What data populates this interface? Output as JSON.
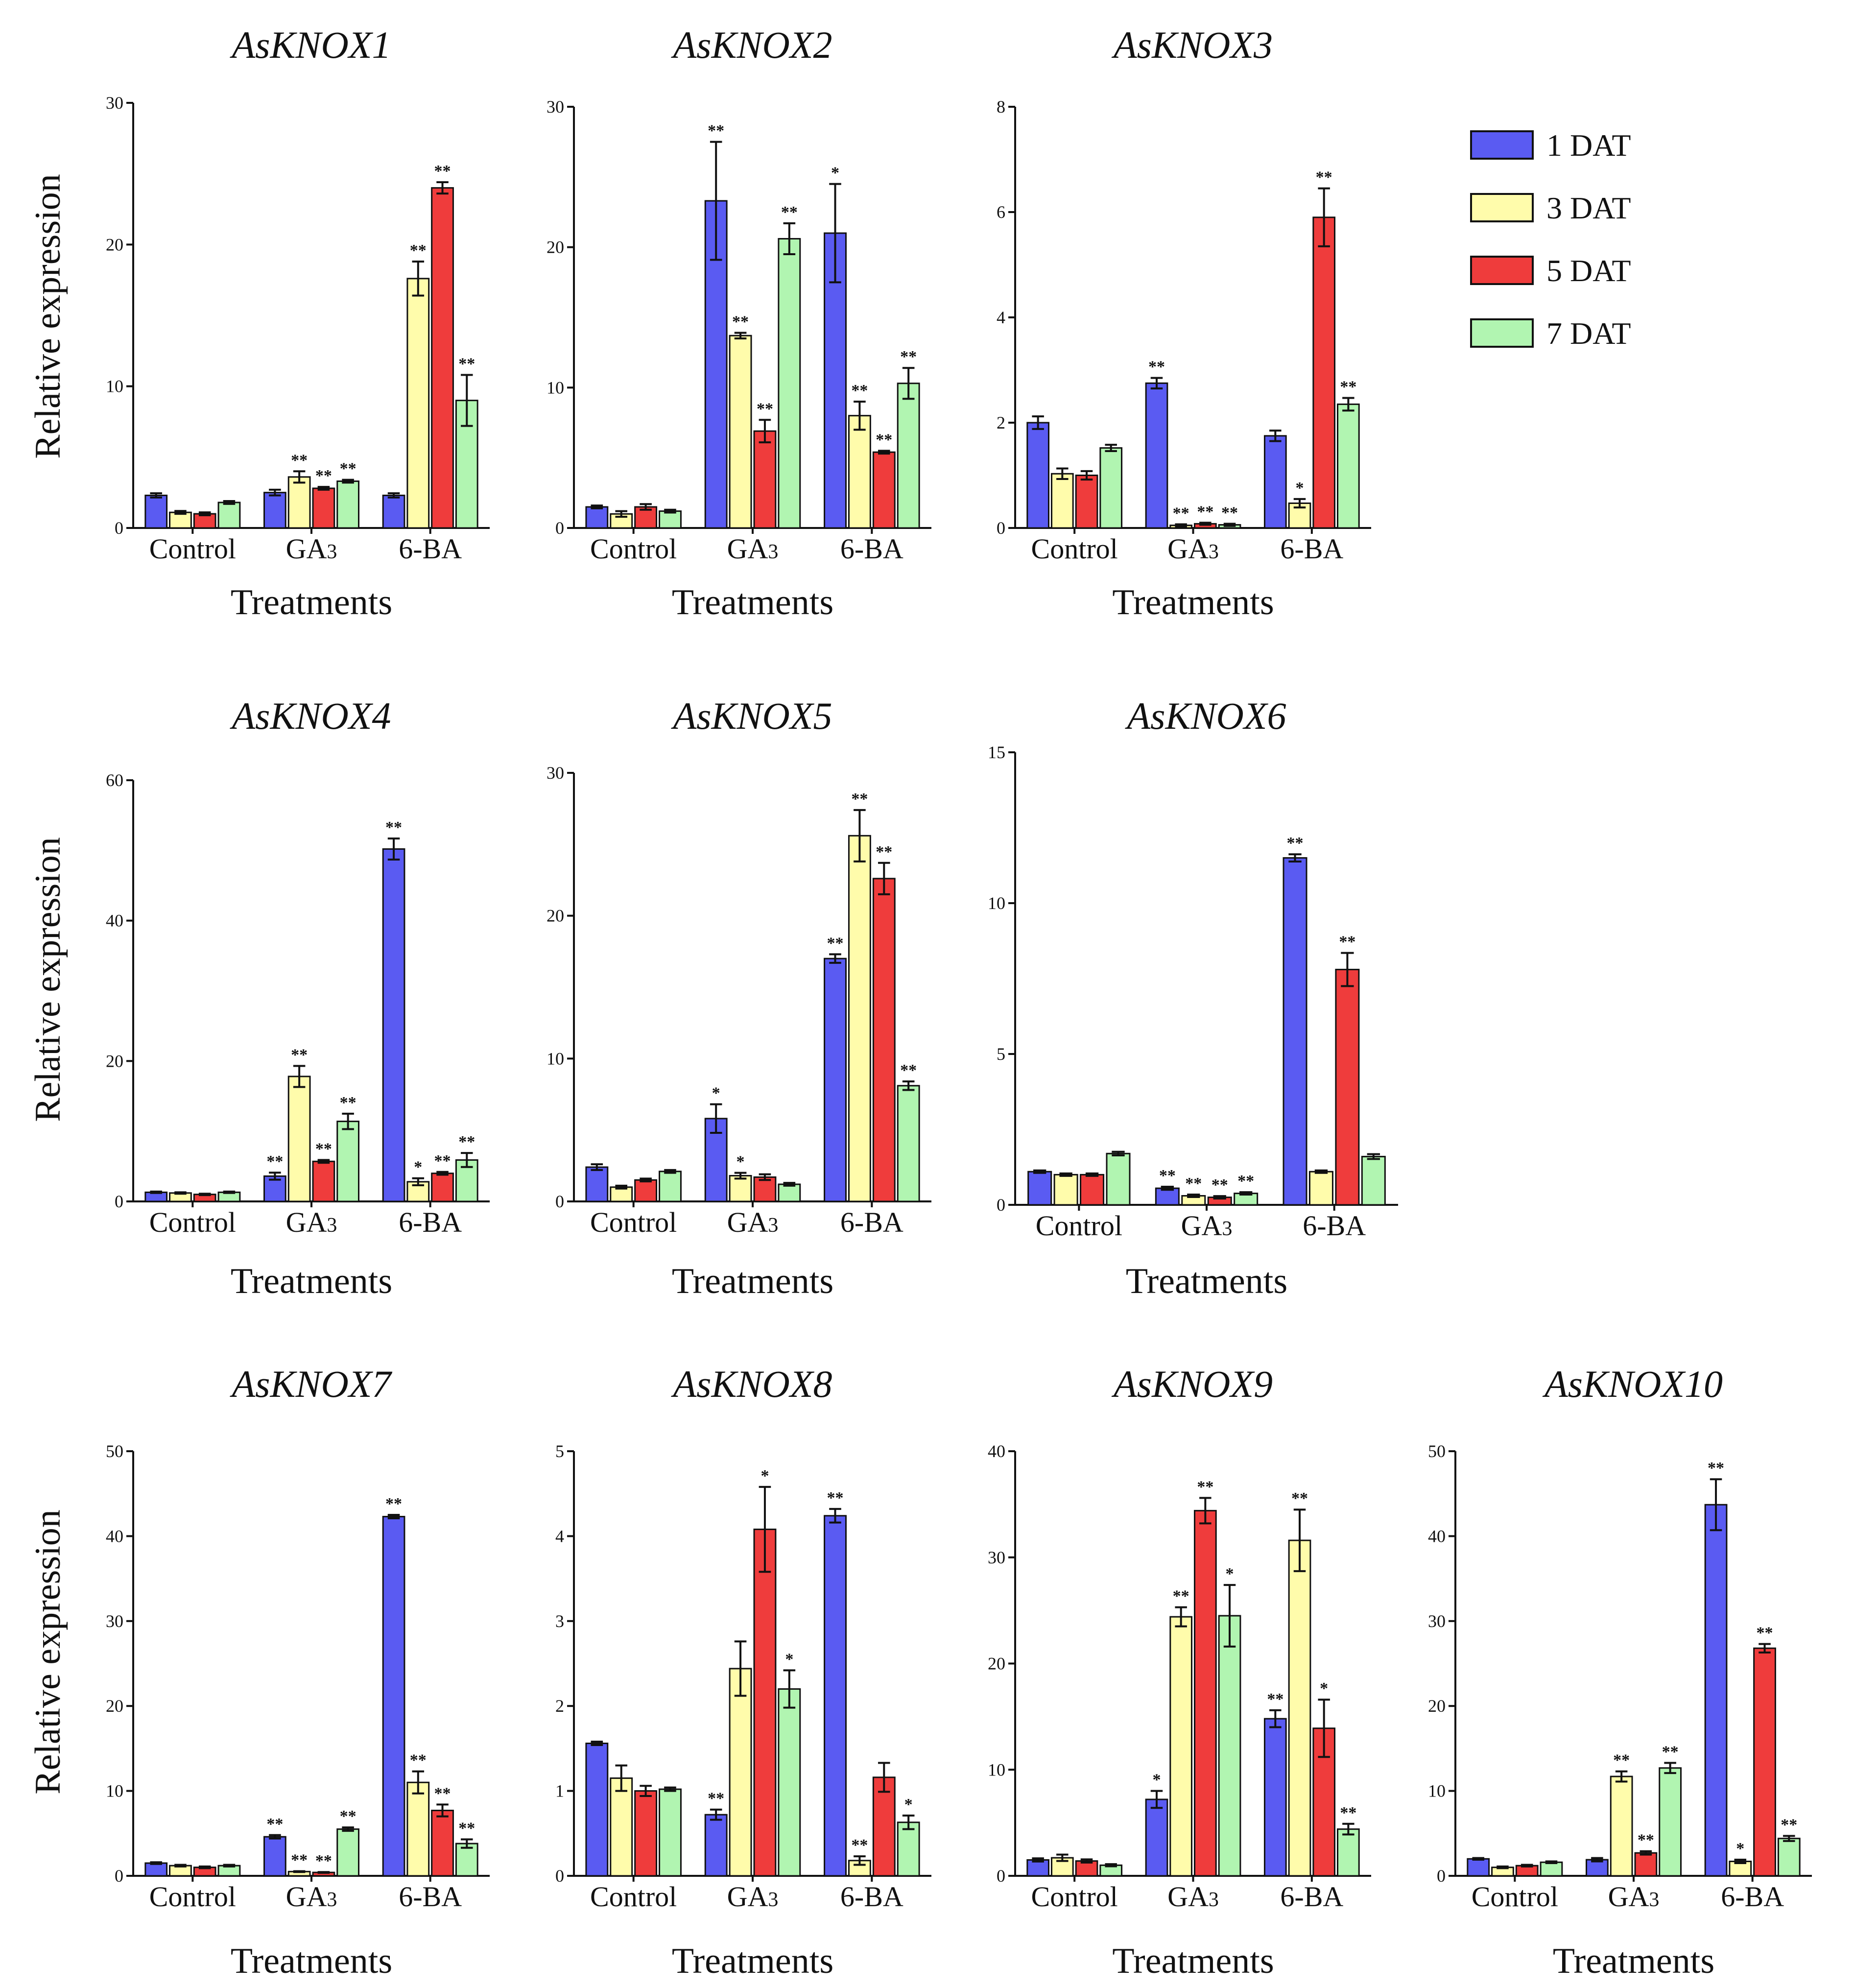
{
  "figure": {
    "ylabel": "Relative  expression",
    "xlabel": "Treatments",
    "categories": [
      "Control",
      "GA3",
      "6-BA"
    ],
    "series_names": [
      "1  DAT",
      "3  DAT",
      "5  DAT",
      "7  DAT"
    ],
    "colors": [
      "#5a5bf2",
      "#fffcab",
      "#ef3c3c",
      "#b1f5b1"
    ]
  },
  "legend": {
    "items": [
      {
        "label": "1  DAT",
        "color": "#5a5bf2"
      },
      {
        "label": "3  DAT",
        "color": "#fffcab"
      },
      {
        "label": "5  DAT",
        "color": "#ef3c3c"
      },
      {
        "label": "7  DAT",
        "color": "#b1f5b1"
      }
    ]
  },
  "chart_data": [
    {
      "type": "bar",
      "title": "AsKNOX1",
      "xlabel": "Treatments",
      "ylabel": "Relative  expression",
      "categories": [
        "Control",
        "GA3",
        "6-BA"
      ],
      "ylim": [
        0,
        30
      ],
      "yticks": [
        0,
        10,
        20,
        30
      ],
      "series": [
        {
          "name": "1  DAT",
          "values": [
            2.3,
            2.5,
            2.3
          ],
          "errors": [
            0.15,
            0.2,
            0.15
          ],
          "sig": [
            "",
            "",
            ""
          ]
        },
        {
          "name": "3  DAT",
          "values": [
            1.1,
            3.6,
            17.6
          ],
          "errors": [
            0.1,
            0.4,
            1.2
          ],
          "sig": [
            "",
            "**",
            "**"
          ]
        },
        {
          "name": "5  DAT",
          "values": [
            1.0,
            2.8,
            24.0
          ],
          "errors": [
            0.1,
            0.1,
            0.4
          ],
          "sig": [
            "",
            "**",
            "**"
          ]
        },
        {
          "name": "7  DAT",
          "values": [
            1.8,
            3.3,
            9.0
          ],
          "errors": [
            0.1,
            0.1,
            1.8
          ],
          "sig": [
            "",
            "**",
            "**"
          ]
        }
      ]
    },
    {
      "type": "bar",
      "title": "AsKNOX2",
      "xlabel": "Treatments",
      "ylabel": "Relative  expression",
      "categories": [
        "Control",
        "GA3",
        "6-BA"
      ],
      "ylim": [
        0,
        30
      ],
      "yticks": [
        0,
        10,
        20,
        30
      ],
      "series": [
        {
          "name": "1  DAT",
          "values": [
            1.5,
            23.3,
            21.0
          ],
          "errors": [
            0.1,
            4.2,
            3.5
          ],
          "sig": [
            "",
            "**",
            "*"
          ]
        },
        {
          "name": "3  DAT",
          "values": [
            1.0,
            13.7,
            8.0
          ],
          "errors": [
            0.2,
            0.2,
            1.0
          ],
          "sig": [
            "",
            "**",
            "**"
          ]
        },
        {
          "name": "5  DAT",
          "values": [
            1.5,
            6.9,
            5.4
          ],
          "errors": [
            0.2,
            0.8,
            0.1
          ],
          "sig": [
            "",
            "**",
            "**"
          ]
        },
        {
          "name": "7  DAT",
          "values": [
            1.2,
            20.6,
            10.3
          ],
          "errors": [
            0.1,
            1.1,
            1.1
          ],
          "sig": [
            "",
            "**",
            "**"
          ]
        }
      ]
    },
    {
      "type": "bar",
      "title": "AsKNOX3",
      "xlabel": "Treatments",
      "ylabel": "Relative  expression",
      "categories": [
        "Control",
        "GA3",
        "6-BA"
      ],
      "ylim": [
        0,
        8
      ],
      "yticks": [
        0,
        2,
        4,
        6,
        8
      ],
      "series": [
        {
          "name": "1  DAT",
          "values": [
            2.0,
            2.75,
            1.75
          ],
          "errors": [
            0.12,
            0.1,
            0.1
          ],
          "sig": [
            "",
            "**",
            ""
          ]
        },
        {
          "name": "3  DAT",
          "values": [
            1.03,
            0.05,
            0.47
          ],
          "errors": [
            0.1,
            0.02,
            0.08
          ],
          "sig": [
            "",
            "**",
            "*"
          ]
        },
        {
          "name": "5  DAT",
          "values": [
            1.0,
            0.08,
            5.9
          ],
          "errors": [
            0.08,
            0.02,
            0.55
          ],
          "sig": [
            "",
            "**",
            "**"
          ]
        },
        {
          "name": "7  DAT",
          "values": [
            1.52,
            0.06,
            2.35
          ],
          "errors": [
            0.06,
            0.02,
            0.12
          ],
          "sig": [
            "",
            "**",
            "**"
          ]
        }
      ]
    },
    {
      "type": "bar",
      "title": "AsKNOX4",
      "xlabel": "Treatments",
      "ylabel": "Relative  expression",
      "categories": [
        "Control",
        "GA3",
        "6-BA"
      ],
      "ylim": [
        0,
        60
      ],
      "yticks": [
        0,
        20,
        40,
        60
      ],
      "series": [
        {
          "name": "1  DAT",
          "values": [
            1.3,
            3.6,
            50.2
          ],
          "errors": [
            0.1,
            0.5,
            1.5
          ],
          "sig": [
            "",
            "**",
            "**"
          ]
        },
        {
          "name": "3  DAT",
          "values": [
            1.2,
            17.8,
            2.8
          ],
          "errors": [
            0.1,
            1.5,
            0.5
          ],
          "sig": [
            "",
            "**",
            "*"
          ]
        },
        {
          "name": "5  DAT",
          "values": [
            1.0,
            5.7,
            4.0
          ],
          "errors": [
            0.1,
            0.2,
            0.2
          ],
          "sig": [
            "",
            "**",
            "**"
          ]
        },
        {
          "name": "7  DAT",
          "values": [
            1.3,
            11.4,
            5.9
          ],
          "errors": [
            0.1,
            1.1,
            1.0
          ],
          "sig": [
            "",
            "**",
            "**"
          ]
        }
      ]
    },
    {
      "type": "bar",
      "title": "AsKNOX5",
      "xlabel": "Treatments",
      "ylabel": "Relative  expression",
      "categories": [
        "Control",
        "GA3",
        "6-BA"
      ],
      "ylim": [
        0,
        30
      ],
      "yticks": [
        0,
        10,
        20,
        30
      ],
      "series": [
        {
          "name": "1  DAT",
          "values": [
            2.4,
            5.8,
            17.0
          ],
          "errors": [
            0.2,
            1.0,
            0.3
          ],
          "sig": [
            "",
            "*",
            "**"
          ]
        },
        {
          "name": "3  DAT",
          "values": [
            1.0,
            1.8,
            25.6
          ],
          "errors": [
            0.1,
            0.2,
            1.8
          ],
          "sig": [
            "",
            "*",
            "**"
          ]
        },
        {
          "name": "5  DAT",
          "values": [
            1.5,
            1.7,
            22.6
          ],
          "errors": [
            0.1,
            0.2,
            1.1
          ],
          "sig": [
            "",
            "",
            "**"
          ]
        },
        {
          "name": "7  DAT",
          "values": [
            2.1,
            1.2,
            8.1
          ],
          "errors": [
            0.1,
            0.1,
            0.3
          ],
          "sig": [
            "",
            "",
            "**"
          ]
        }
      ]
    },
    {
      "type": "bar",
      "title": "AsKNOX6",
      "xlabel": "Treatments",
      "ylabel": "Relative  expression",
      "categories": [
        "Control",
        "GA3",
        "6-BA"
      ],
      "ylim": [
        0,
        15
      ],
      "yticks": [
        0,
        5,
        10,
        15
      ],
      "series": [
        {
          "name": "1  DAT",
          "values": [
            1.1,
            0.55,
            11.5
          ],
          "errors": [
            0.04,
            0.05,
            0.12
          ],
          "sig": [
            "",
            "**",
            "**"
          ]
        },
        {
          "name": "3  DAT",
          "values": [
            1.0,
            0.3,
            1.1
          ],
          "errors": [
            0.04,
            0.04,
            0.04
          ],
          "sig": [
            "",
            "**",
            ""
          ]
        },
        {
          "name": "5  DAT",
          "values": [
            1.0,
            0.25,
            7.8
          ],
          "errors": [
            0.04,
            0.04,
            0.55
          ],
          "sig": [
            "",
            "**",
            "**"
          ]
        },
        {
          "name": "7  DAT",
          "values": [
            1.7,
            0.38,
            1.6
          ],
          "errors": [
            0.06,
            0.04,
            0.08
          ],
          "sig": [
            "",
            "**",
            ""
          ]
        }
      ]
    },
    {
      "type": "bar",
      "title": "AsKNOX7",
      "xlabel": "Treatments",
      "ylabel": "Relative  expression",
      "categories": [
        "Control",
        "GA3",
        "6-BA"
      ],
      "ylim": [
        0,
        50
      ],
      "yticks": [
        0,
        10,
        20,
        30,
        40,
        50
      ],
      "series": [
        {
          "name": "1  DAT",
          "values": [
            1.5,
            4.6,
            42.3
          ],
          "errors": [
            0.1,
            0.2,
            0.2
          ],
          "sig": [
            "",
            "**",
            "**"
          ]
        },
        {
          "name": "3  DAT",
          "values": [
            1.2,
            0.5,
            11.0
          ],
          "errors": [
            0.1,
            0.05,
            1.3
          ],
          "sig": [
            "",
            "**",
            "**"
          ]
        },
        {
          "name": "5  DAT",
          "values": [
            1.0,
            0.4,
            7.7
          ],
          "errors": [
            0.1,
            0.05,
            0.7
          ],
          "sig": [
            "",
            "**",
            "**"
          ]
        },
        {
          "name": "7  DAT",
          "values": [
            1.2,
            5.5,
            3.8
          ],
          "errors": [
            0.1,
            0.2,
            0.5
          ],
          "sig": [
            "",
            "**",
            "**"
          ]
        }
      ]
    },
    {
      "type": "bar",
      "title": "AsKNOX8",
      "xlabel": "Treatments",
      "ylabel": "Relative  expression",
      "categories": [
        "Control",
        "GA3",
        "6-BA"
      ],
      "ylim": [
        0,
        5
      ],
      "yticks": [
        0,
        1,
        2,
        3,
        4,
        5
      ],
      "series": [
        {
          "name": "1  DAT",
          "values": [
            1.56,
            0.72,
            4.24
          ],
          "errors": [
            0.02,
            0.06,
            0.08
          ],
          "sig": [
            "",
            "**",
            "**"
          ]
        },
        {
          "name": "3  DAT",
          "values": [
            1.15,
            2.44,
            0.18
          ],
          "errors": [
            0.15,
            0.32,
            0.05
          ],
          "sig": [
            "",
            "",
            "**"
          ]
        },
        {
          "name": "5  DAT",
          "values": [
            1.0,
            4.08,
            1.16
          ],
          "errors": [
            0.06,
            0.5,
            0.17
          ],
          "sig": [
            "",
            "*",
            ""
          ]
        },
        {
          "name": "7  DAT",
          "values": [
            1.02,
            2.2,
            0.63
          ],
          "errors": [
            0.02,
            0.22,
            0.08
          ],
          "sig": [
            "",
            "*",
            "*"
          ]
        }
      ]
    },
    {
      "type": "bar",
      "title": "AsKNOX9",
      "xlabel": "Treatments",
      "ylabel": "Relative  expression",
      "categories": [
        "Control",
        "GA3",
        "6-BA"
      ],
      "ylim": [
        0,
        40
      ],
      "yticks": [
        0,
        10,
        20,
        30,
        40
      ],
      "series": [
        {
          "name": "1  DAT",
          "values": [
            1.5,
            7.2,
            14.8
          ],
          "errors": [
            0.15,
            0.8,
            0.8
          ],
          "sig": [
            "",
            "*",
            "**"
          ]
        },
        {
          "name": "3  DAT",
          "values": [
            1.7,
            24.4,
            31.6
          ],
          "errors": [
            0.3,
            0.9,
            2.9
          ],
          "sig": [
            "",
            "**",
            "**"
          ]
        },
        {
          "name": "5  DAT",
          "values": [
            1.4,
            34.4,
            13.9
          ],
          "errors": [
            0.15,
            1.2,
            2.7
          ],
          "sig": [
            "",
            "**",
            "*"
          ]
        },
        {
          "name": "7  DAT",
          "values": [
            1.0,
            24.5,
            4.4
          ],
          "errors": [
            0.1,
            2.9,
            0.5
          ],
          "sig": [
            "",
            "*",
            "**"
          ]
        }
      ]
    },
    {
      "type": "bar",
      "title": "AsKNOX10",
      "xlabel": "Treatments",
      "ylabel": "Relative  expression",
      "categories": [
        "Control",
        "GA3",
        "6-BA"
      ],
      "ylim": [
        0,
        50
      ],
      "yticks": [
        0,
        10,
        20,
        30,
        40,
        50
      ],
      "series": [
        {
          "name": "1  DAT",
          "values": [
            2.0,
            1.9,
            43.7
          ],
          "errors": [
            0.1,
            0.2,
            3.0
          ],
          "sig": [
            "",
            "",
            "**"
          ]
        },
        {
          "name": "3  DAT",
          "values": [
            1.0,
            11.7,
            1.7
          ],
          "errors": [
            0.1,
            0.6,
            0.2
          ],
          "sig": [
            "",
            "**",
            "*"
          ]
        },
        {
          "name": "5  DAT",
          "values": [
            1.2,
            2.7,
            26.8
          ],
          "errors": [
            0.1,
            0.2,
            0.5
          ],
          "sig": [
            "",
            "**",
            "**"
          ]
        },
        {
          "name": "7  DAT",
          "values": [
            1.6,
            12.7,
            4.4
          ],
          "errors": [
            0.1,
            0.6,
            0.3
          ],
          "sig": [
            "",
            "**",
            "**"
          ]
        }
      ]
    }
  ]
}
